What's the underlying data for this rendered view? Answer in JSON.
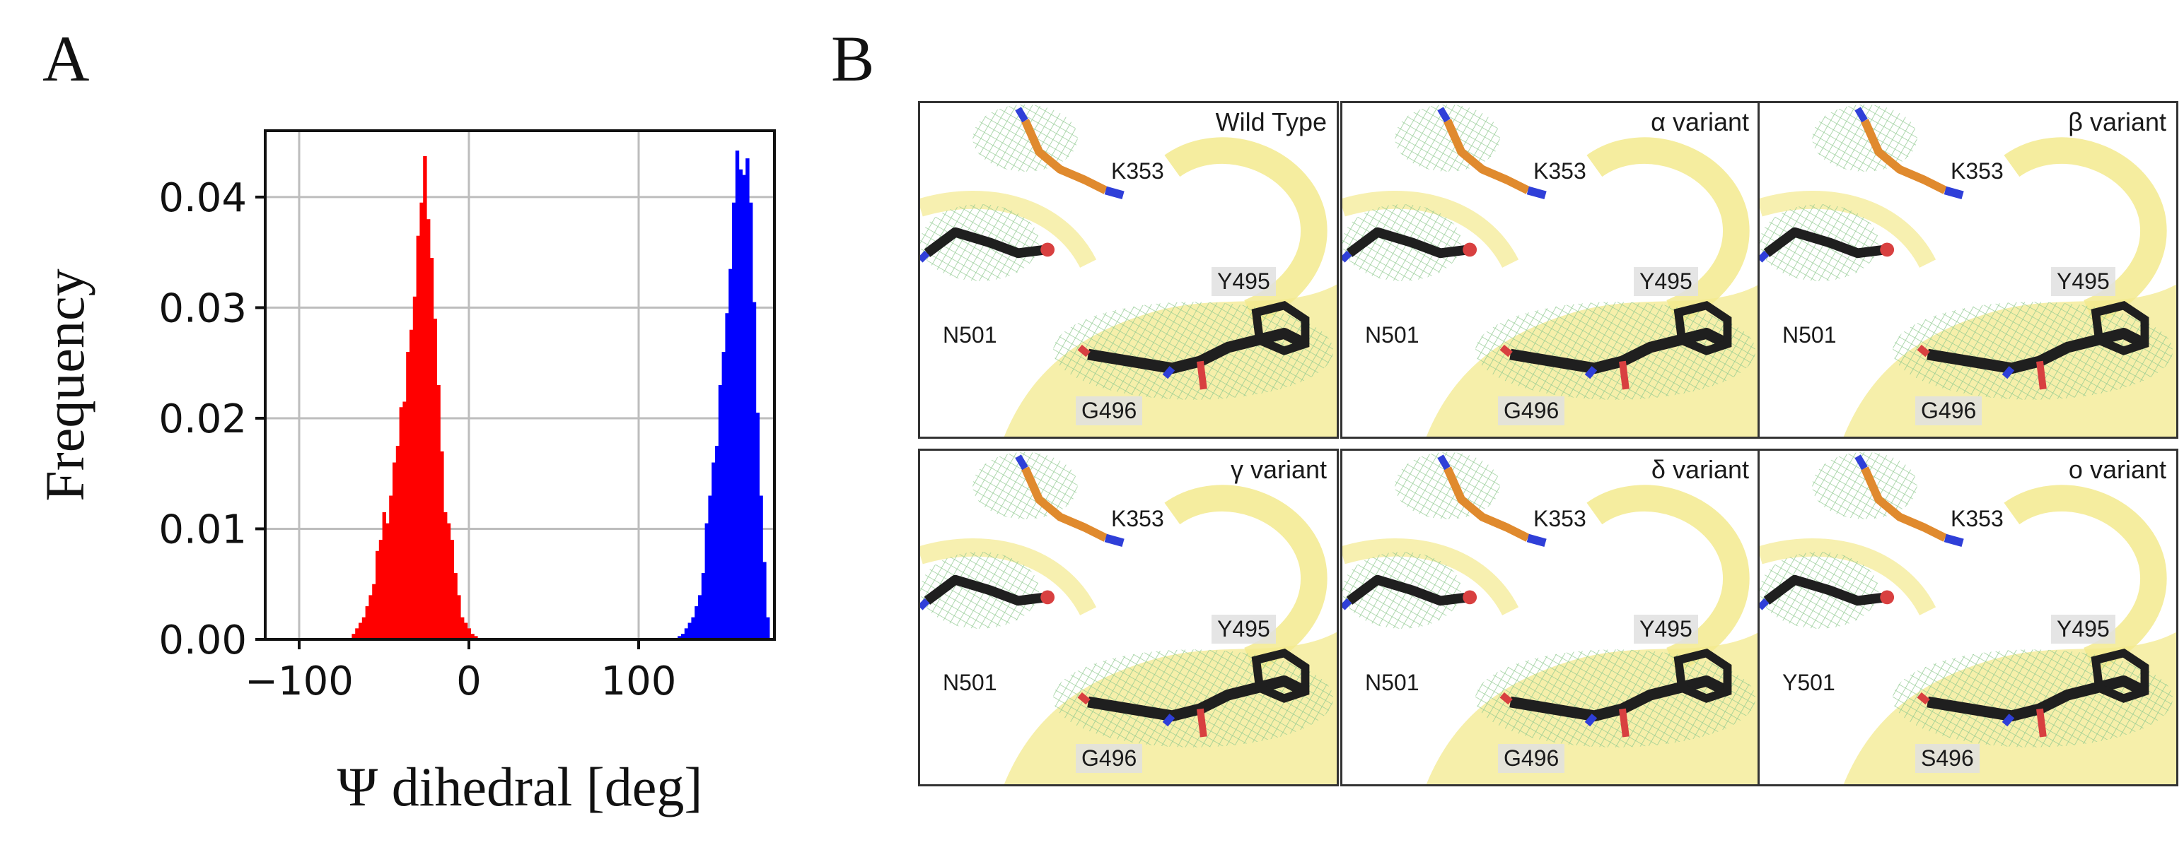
{
  "panelA": {
    "letter": "A",
    "chart_data": {
      "type": "histogram",
      "title": "",
      "xlabel": "Ψ dihedral [deg]",
      "ylabel": "Frequency",
      "xlim": [
        -120,
        180
      ],
      "ylim": [
        0,
        0.046
      ],
      "xticks": [
        -100,
        0,
        100
      ],
      "xtick_labels": [
        "−100",
        "0",
        "100"
      ],
      "yticks": [
        0.0,
        0.01,
        0.02,
        0.03,
        0.04
      ],
      "ytick_labels": [
        "0.00",
        "0.01",
        "0.02",
        "0.03",
        "0.04"
      ],
      "grid": true,
      "bin_width": 2,
      "series": [
        {
          "name": "red",
          "color": "#ff0000",
          "x": [
            -68,
            -66,
            -64,
            -62,
            -60,
            -58,
            -56,
            -54,
            -52,
            -50,
            -48,
            -46,
            -44,
            -42,
            -40,
            -38,
            -36,
            -34,
            -32,
            -30,
            -28,
            -26,
            -24,
            -22,
            -20,
            -18,
            -16,
            -14,
            -12,
            -10,
            -8,
            -6,
            -4,
            -2,
            0,
            2,
            4
          ],
          "values": [
            0.0005,
            0.001,
            0.0015,
            0.002,
            0.003,
            0.004,
            0.005,
            0.008,
            0.009,
            0.0115,
            0.0105,
            0.013,
            0.016,
            0.0175,
            0.021,
            0.0215,
            0.026,
            0.028,
            0.031,
            0.0365,
            0.0395,
            0.0437,
            0.038,
            0.0345,
            0.029,
            0.023,
            0.017,
            0.0115,
            0.0105,
            0.009,
            0.006,
            0.004,
            0.002,
            0.0015,
            0.001,
            0.0005,
            0.0003
          ]
        },
        {
          "name": "blue",
          "color": "#0000ff",
          "x": [
            124,
            126,
            128,
            130,
            132,
            134,
            136,
            138,
            140,
            142,
            144,
            146,
            148,
            150,
            152,
            154,
            156,
            158,
            160,
            162,
            164,
            166,
            168,
            170,
            172,
            174,
            176
          ],
          "values": [
            0.0003,
            0.0005,
            0.001,
            0.0015,
            0.002,
            0.003,
            0.004,
            0.006,
            0.0105,
            0.013,
            0.016,
            0.0175,
            0.023,
            0.026,
            0.0295,
            0.0335,
            0.0395,
            0.0442,
            0.0425,
            0.042,
            0.0435,
            0.0395,
            0.0305,
            0.0205,
            0.013,
            0.007,
            0.002
          ]
        }
      ]
    }
  },
  "panelB": {
    "letter": "B",
    "colors": {
      "ribbon": "#f3ea8e",
      "mesh": "#8fc98f",
      "stick_dark": "#1f1f1f",
      "stick_orange": "#e08a2e",
      "nitrogen": "#2f3fd8",
      "oxygen": "#d84040"
    },
    "panels": [
      {
        "title": "Wild Type",
        "labels": [
          "K353",
          "Y495",
          "N501",
          "G496"
        ]
      },
      {
        "title": "α variant",
        "labels": [
          "K353",
          "Y495",
          "N501",
          "G496"
        ]
      },
      {
        "title": "β variant",
        "labels": [
          "K353",
          "Y495",
          "N501",
          "G496"
        ]
      },
      {
        "title": "γ variant",
        "labels": [
          "K353",
          "Y495",
          "N501",
          "G496"
        ]
      },
      {
        "title": "δ variant",
        "labels": [
          "K353",
          "Y495",
          "N501",
          "G496"
        ]
      },
      {
        "title": "o variant",
        "labels": [
          "K353",
          "Y495",
          "Y501",
          "S496"
        ]
      }
    ]
  }
}
